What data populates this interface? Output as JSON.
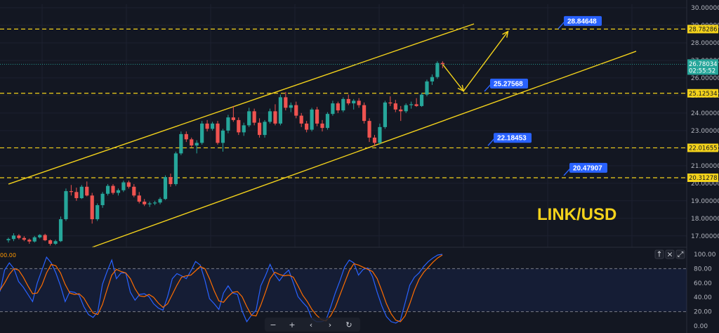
{
  "chart_data": {
    "type": "candlestick",
    "symbol_label": "LINK/USD",
    "price_axis": {
      "range": [
        16.35,
        30.2
      ],
      "ticks": [
        "17.00000",
        "18.00000",
        "19.00000",
        "20.00000",
        "21.00000",
        "22.00000",
        "23.00000",
        "24.00000",
        "25.00000",
        "26.00000",
        "27.00000",
        "28.00000",
        "29.00000",
        "30.00000"
      ]
    },
    "current_price": {
      "value": 26.78034,
      "label": "26.78034",
      "countdown": "02:55:52",
      "color": "#26a69a"
    },
    "horizontal_levels": [
      {
        "value": 28.78286,
        "label": "28.78286"
      },
      {
        "value": 25.12534,
        "label": "25.12534"
      },
      {
        "value": 22.01655,
        "label": "22.01655"
      },
      {
        "value": 20.31278,
        "label": "20.31278"
      }
    ],
    "annotations": [
      {
        "value": 28.84648,
        "label": "28.84648"
      },
      {
        "value": 25.27568,
        "label": "25.27568"
      },
      {
        "value": 22.18453,
        "label": "22.18453"
      },
      {
        "value": 20.47907,
        "label": "20.47907"
      }
    ],
    "channel": {
      "upper": {
        "start": [
          0,
          19.95
        ],
        "end": [
          89,
          29.08
        ]
      },
      "lower": {
        "start": [
          16,
          16.35
        ],
        "end": [
          120,
          27.52
        ]
      }
    },
    "projection": {
      "points": [
        [
          83,
          26.78
        ],
        [
          87,
          25.25
        ],
        [
          95.5,
          28.65
        ]
      ]
    },
    "candles": [
      [
        16.75,
        16.9,
        16.62,
        16.82
      ],
      [
        16.82,
        17.15,
        16.7,
        17.02
      ],
      [
        17.02,
        17.1,
        16.8,
        16.88
      ],
      [
        16.88,
        16.98,
        16.7,
        16.78
      ],
      [
        16.78,
        16.85,
        16.55,
        16.68
      ],
      [
        16.68,
        17.0,
        16.62,
        16.92
      ],
      [
        16.92,
        17.1,
        16.85,
        17.05
      ],
      [
        17.05,
        17.12,
        16.7,
        16.75
      ],
      [
        16.75,
        16.8,
        16.45,
        16.55
      ],
      [
        16.55,
        16.78,
        16.48,
        16.7
      ],
      [
        16.7,
        18.1,
        16.65,
        17.95
      ],
      [
        17.95,
        19.7,
        17.85,
        19.55
      ],
      [
        19.55,
        19.9,
        19.3,
        19.5
      ],
      [
        19.5,
        19.75,
        19.0,
        19.15
      ],
      [
        19.15,
        19.9,
        19.1,
        19.8
      ],
      [
        19.8,
        20.1,
        19.25,
        19.3
      ],
      [
        19.3,
        19.45,
        17.7,
        17.95
      ],
      [
        17.95,
        18.85,
        17.85,
        18.75
      ],
      [
        18.75,
        19.5,
        18.6,
        19.4
      ],
      [
        19.4,
        19.95,
        19.3,
        19.85
      ],
      [
        19.85,
        19.95,
        19.35,
        19.45
      ],
      [
        19.45,
        19.7,
        19.3,
        19.6
      ],
      [
        19.6,
        20.15,
        19.5,
        20.05
      ],
      [
        20.05,
        20.15,
        19.7,
        19.8
      ],
      [
        19.8,
        19.95,
        19.2,
        19.3
      ],
      [
        19.3,
        19.5,
        18.85,
        18.95
      ],
      [
        18.95,
        19.1,
        18.7,
        18.8
      ],
      [
        18.8,
        18.95,
        18.65,
        18.85
      ],
      [
        18.85,
        19.0,
        18.75,
        18.9
      ],
      [
        18.9,
        19.2,
        18.8,
        19.1
      ],
      [
        19.1,
        20.45,
        19.05,
        20.35
      ],
      [
        20.35,
        20.55,
        19.8,
        19.95
      ],
      [
        19.95,
        21.8,
        19.85,
        21.7
      ],
      [
        21.7,
        22.95,
        21.6,
        22.8
      ],
      [
        22.8,
        22.95,
        22.35,
        22.5
      ],
      [
        22.5,
        22.6,
        22.05,
        22.15
      ],
      [
        22.15,
        22.45,
        21.7,
        22.3
      ],
      [
        22.3,
        23.55,
        22.2,
        23.4
      ],
      [
        23.4,
        23.6,
        22.95,
        23.1
      ],
      [
        23.1,
        23.5,
        23.0,
        23.4
      ],
      [
        23.4,
        23.55,
        22.2,
        22.3
      ],
      [
        22.3,
        23.1,
        21.8,
        23.0
      ],
      [
        23.0,
        23.9,
        22.85,
        23.75
      ],
      [
        23.75,
        24.4,
        23.5,
        23.6
      ],
      [
        23.6,
        23.75,
        22.75,
        22.9
      ],
      [
        22.9,
        23.45,
        22.7,
        23.3
      ],
      [
        23.3,
        24.3,
        23.2,
        24.1
      ],
      [
        24.1,
        24.25,
        23.3,
        23.45
      ],
      [
        23.45,
        23.7,
        22.6,
        22.75
      ],
      [
        22.75,
        23.6,
        22.6,
        23.5
      ],
      [
        23.5,
        24.25,
        23.4,
        24.1
      ],
      [
        24.1,
        24.5,
        23.3,
        23.4
      ],
      [
        23.4,
        25.05,
        23.3,
        24.9
      ],
      [
        24.9,
        25.2,
        24.15,
        24.3
      ],
      [
        24.3,
        24.6,
        24.05,
        24.45
      ],
      [
        24.45,
        24.65,
        23.7,
        23.85
      ],
      [
        23.85,
        24.0,
        23.2,
        23.4
      ],
      [
        23.4,
        23.55,
        22.9,
        23.05
      ],
      [
        23.05,
        24.3,
        22.95,
        24.2
      ],
      [
        24.2,
        24.35,
        23.25,
        23.4
      ],
      [
        23.4,
        23.6,
        22.95,
        23.15
      ],
      [
        23.15,
        24.05,
        23.05,
        23.95
      ],
      [
        23.95,
        24.7,
        23.85,
        24.55
      ],
      [
        24.55,
        24.65,
        24.0,
        24.15
      ],
      [
        24.15,
        24.9,
        24.05,
        24.8
      ],
      [
        24.8,
        25.05,
        24.45,
        24.55
      ],
      [
        24.55,
        24.8,
        24.2,
        24.7
      ],
      [
        24.7,
        24.85,
        24.3,
        24.45
      ],
      [
        24.45,
        24.6,
        23.4,
        23.55
      ],
      [
        23.55,
        23.7,
        22.35,
        22.6
      ],
      [
        22.6,
        22.75,
        22.1,
        22.3
      ],
      [
        22.3,
        23.4,
        22.2,
        23.2
      ],
      [
        23.2,
        24.7,
        23.1,
        24.6
      ],
      [
        24.6,
        24.95,
        24.4,
        24.55
      ],
      [
        24.55,
        24.75,
        24.05,
        24.2
      ],
      [
        24.2,
        24.4,
        23.55,
        24.1
      ],
      [
        24.1,
        24.55,
        24.0,
        24.45
      ],
      [
        24.45,
        24.65,
        24.25,
        24.5
      ],
      [
        24.5,
        24.85,
        24.35,
        24.4
      ],
      [
        24.4,
        25.15,
        24.35,
        25.05
      ],
      [
        25.05,
        25.9,
        24.95,
        25.8
      ],
      [
        25.8,
        26.2,
        25.6,
        26.05
      ],
      [
        26.05,
        26.95,
        25.95,
        26.85
      ],
      [
        26.85,
        26.95,
        26.55,
        26.78
      ]
    ],
    "oscillator": {
      "type": "stochastic",
      "scale_label": "00.00",
      "range": [
        0,
        100
      ],
      "ticks": [
        "0.00",
        "20.00",
        "40.00",
        "60.00",
        "80.00",
        "100.00"
      ],
      "bands": [
        20,
        80
      ],
      "k_color": "#2962ff",
      "d_color": "#ff6d00",
      "k": [
        48,
        78,
        88,
        80,
        62,
        54,
        44,
        34,
        60,
        78,
        96,
        88,
        74,
        56,
        34,
        48,
        47,
        43,
        27,
        16,
        12,
        20,
        58,
        76,
        92,
        66,
        74,
        74,
        47,
        36,
        44,
        45,
        41,
        31,
        25,
        22,
        41,
        66,
        73,
        70,
        66,
        77,
        90,
        85,
        64,
        38,
        31,
        23,
        46,
        56,
        46,
        44,
        21,
        6,
        15,
        22,
        56,
        70,
        86,
        72,
        63,
        72,
        78,
        60,
        41,
        33,
        26,
        10,
        6,
        6,
        8,
        26,
        46,
        63,
        82,
        92,
        88,
        71,
        79,
        81,
        69,
        47,
        28,
        13,
        6,
        4,
        8,
        32,
        57,
        68,
        74,
        83,
        90,
        95,
        99,
        100
      ],
      "d": [
        50,
        60,
        72,
        80,
        78,
        68,
        56,
        45,
        46,
        57,
        74,
        86,
        84,
        74,
        58,
        46,
        44,
        45,
        39,
        28,
        18,
        16,
        30,
        51,
        71,
        79,
        76,
        74,
        66,
        52,
        42,
        41,
        44,
        40,
        32,
        26,
        31,
        44,
        57,
        68,
        70,
        71,
        77,
        83,
        80,
        66,
        49,
        35,
        33,
        41,
        47,
        48,
        41,
        27,
        15,
        14,
        29,
        47,
        66,
        75,
        72,
        70,
        71,
        68,
        56,
        43,
        34,
        23,
        15,
        9,
        7,
        14,
        26,
        43,
        60,
        77,
        87,
        85,
        82,
        79,
        76,
        66,
        49,
        31,
        17,
        8,
        6,
        14,
        31,
        50,
        65,
        75,
        82,
        89,
        95,
        99
      ]
    }
  },
  "toolbar": {
    "panel_buttons": [
      "↑",
      "×",
      "⤢"
    ],
    "nav_buttons": [
      "−",
      "+",
      "‹",
      "›",
      "↻"
    ]
  }
}
